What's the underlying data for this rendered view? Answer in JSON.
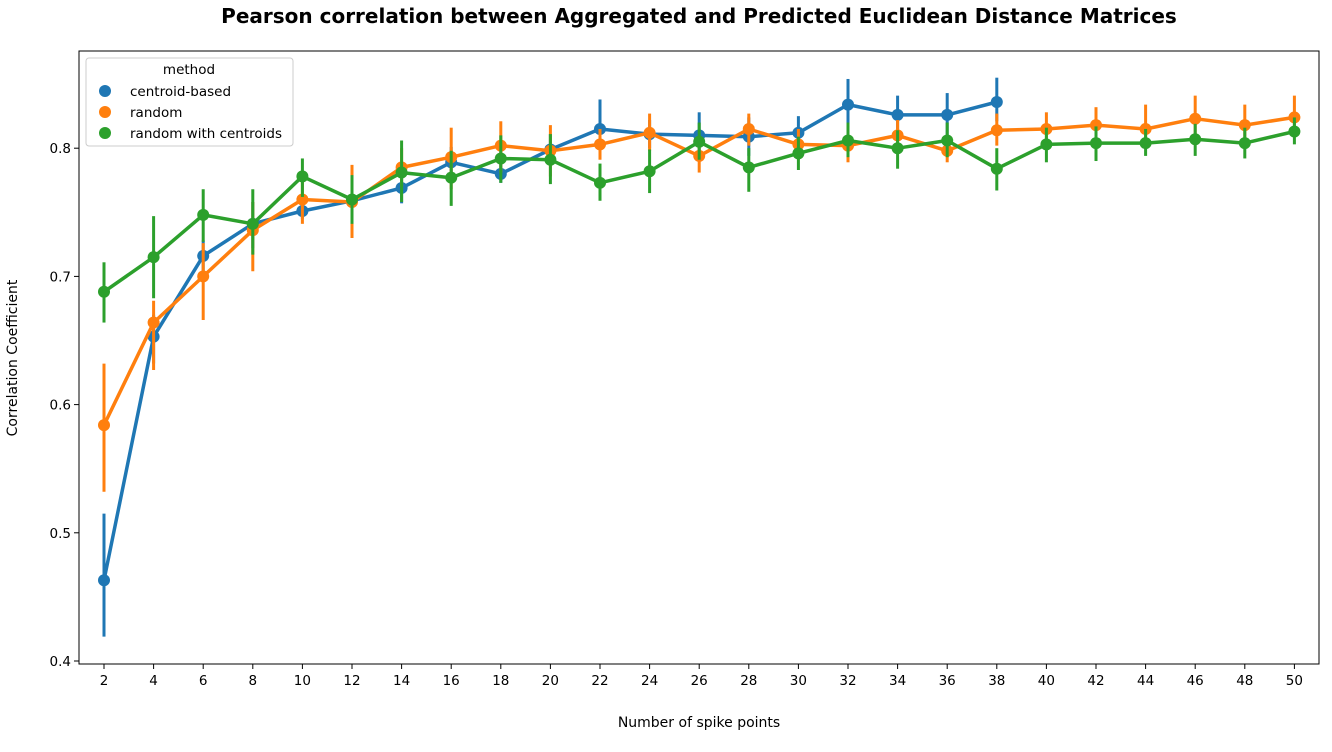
{
  "chart_data": {
    "type": "line",
    "title": "Pearson correlation between Aggregated and Predicted Euclidean Distance Matrices",
    "xlabel": "Number of spike points",
    "ylabel": "Correlation Coefficient",
    "categories": [
      "2",
      "4",
      "6",
      "8",
      "10",
      "12",
      "14",
      "16",
      "18",
      "20",
      "22",
      "24",
      "26",
      "28",
      "30",
      "32",
      "34",
      "36",
      "38",
      "40",
      "42",
      "44",
      "46",
      "48",
      "50"
    ],
    "ylim": [
      0.4,
      0.88
    ],
    "yticks": [
      "0.4",
      "0.5",
      "0.6",
      "0.7",
      "0.8"
    ],
    "grid": false,
    "legend": {
      "title": "method",
      "placement": "top-left"
    },
    "series": [
      {
        "name": "centroid-based",
        "color": "#1f77b4",
        "values": [
          0.463,
          0.653,
          0.716,
          0.741,
          0.751,
          0.759,
          0.769,
          0.789,
          0.78,
          0.799,
          0.815,
          0.811,
          0.81,
          0.809,
          0.812,
          0.834,
          0.826,
          0.826,
          0.836,
          null,
          null,
          null,
          null,
          null,
          null
        ],
        "err_low": [
          0.419,
          0.632,
          0.704,
          0.722,
          0.745,
          0.749,
          0.757,
          0.778,
          0.773,
          0.789,
          0.801,
          0.8,
          0.797,
          0.794,
          0.8,
          0.816,
          0.812,
          0.81,
          0.821,
          null,
          null,
          null,
          null,
          null,
          null
        ],
        "err_high": [
          0.515,
          0.67,
          0.728,
          0.758,
          0.76,
          0.768,
          0.781,
          0.801,
          0.788,
          0.811,
          0.838,
          0.822,
          0.828,
          0.824,
          0.825,
          0.854,
          0.841,
          0.843,
          0.855,
          null,
          null,
          null,
          null,
          null,
          null
        ]
      },
      {
        "name": "random",
        "color": "#ff7f0e",
        "values": [
          0.584,
          0.664,
          0.7,
          0.736,
          0.76,
          0.758,
          0.785,
          0.793,
          0.802,
          0.798,
          0.803,
          0.812,
          0.794,
          0.815,
          0.803,
          0.802,
          0.81,
          0.798,
          0.814,
          0.815,
          0.818,
          0.815,
          0.823,
          0.818,
          0.824
        ],
        "err_low": [
          0.532,
          0.627,
          0.666,
          0.704,
          0.741,
          0.73,
          0.77,
          0.768,
          0.781,
          0.778,
          0.791,
          0.798,
          0.781,
          0.802,
          0.791,
          0.789,
          0.798,
          0.789,
          0.802,
          0.805,
          0.807,
          0.801,
          0.808,
          0.806,
          0.813
        ],
        "err_high": [
          0.632,
          0.681,
          0.726,
          0.758,
          0.776,
          0.787,
          0.8,
          0.816,
          0.821,
          0.818,
          0.815,
          0.827,
          0.808,
          0.827,
          0.815,
          0.813,
          0.822,
          0.806,
          0.827,
          0.828,
          0.832,
          0.834,
          0.841,
          0.834,
          0.841
        ]
      },
      {
        "name": "random with centroids",
        "color": "#2ca02c",
        "values": [
          0.688,
          0.715,
          0.748,
          0.741,
          0.778,
          0.76,
          0.781,
          0.777,
          0.792,
          0.791,
          0.773,
          0.782,
          0.805,
          0.785,
          0.796,
          0.806,
          0.8,
          0.806,
          0.784,
          0.803,
          0.804,
          0.804,
          0.807,
          0.804,
          0.813
        ],
        "err_low": [
          0.664,
          0.683,
          0.727,
          0.717,
          0.762,
          0.741,
          0.758,
          0.755,
          0.773,
          0.772,
          0.759,
          0.765,
          0.791,
          0.766,
          0.783,
          0.793,
          0.784,
          0.793,
          0.767,
          0.789,
          0.79,
          0.794,
          0.794,
          0.792,
          0.803
        ],
        "err_high": [
          0.711,
          0.747,
          0.768,
          0.768,
          0.792,
          0.779,
          0.806,
          0.798,
          0.81,
          0.811,
          0.788,
          0.799,
          0.82,
          0.8,
          0.809,
          0.82,
          0.814,
          0.82,
          0.8,
          0.816,
          0.817,
          0.815,
          0.819,
          0.816,
          0.824
        ]
      }
    ]
  }
}
